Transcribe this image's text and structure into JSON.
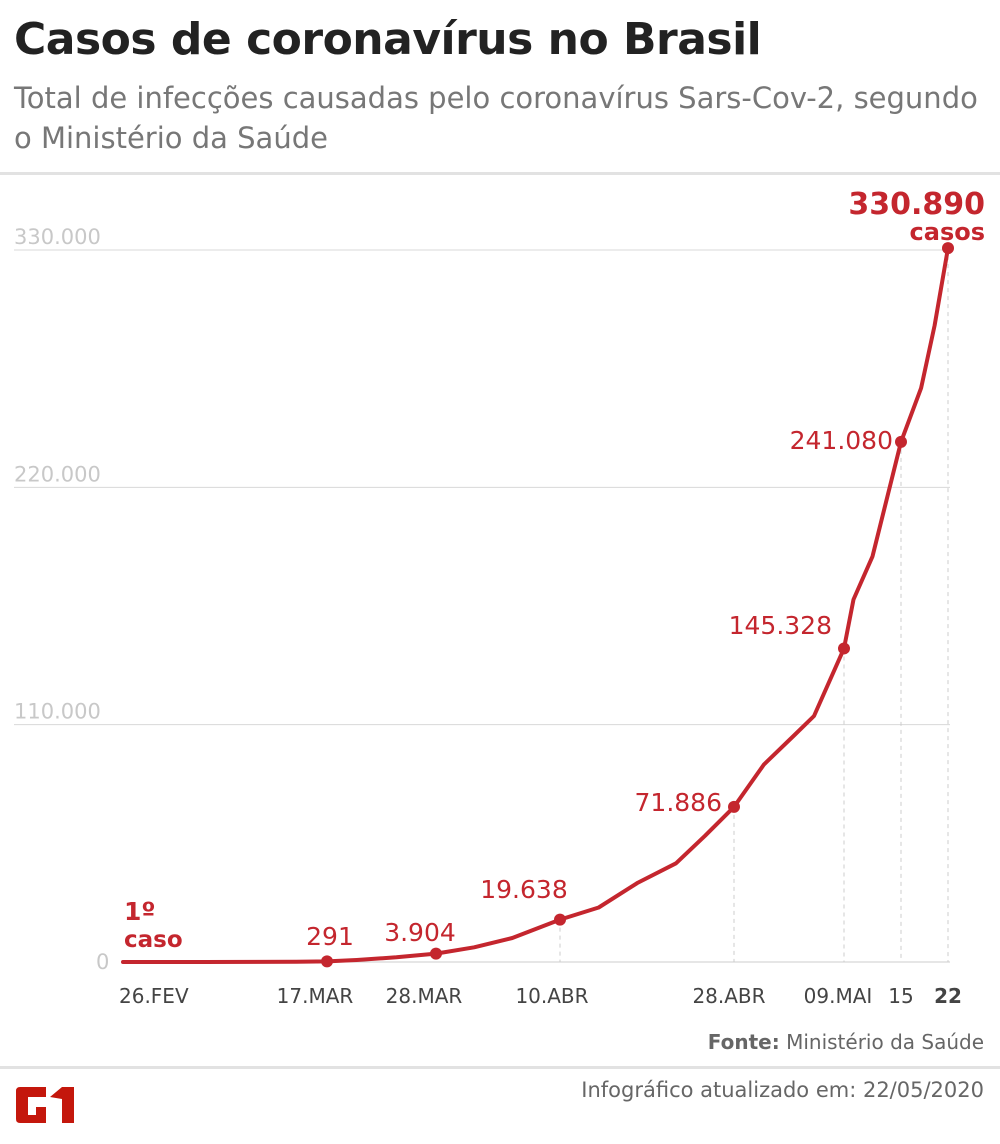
{
  "header": {
    "title": "Casos de coronavírus no Brasil",
    "subtitle": "Total de infecções causadas pelo coronavírus Sars-Cov-2, segundo o Ministério da Saúde"
  },
  "chart_data": {
    "type": "line",
    "title": "Casos de coronavírus no Brasil",
    "subtitle": "Total de infecções causadas pelo coronavírus Sars-Cov-2, segundo o Ministério da Saúde",
    "xlabel": "",
    "ylabel": "",
    "ylim": [
      0,
      330000
    ],
    "grid": true,
    "color": "#c4262e",
    "y_ticks": [
      {
        "value": 0,
        "label": "0"
      },
      {
        "value": 110000,
        "label": "110.000"
      },
      {
        "value": 220000,
        "label": "220.000"
      },
      {
        "value": 330000,
        "label": "330.000"
      }
    ],
    "x_ticks": [
      {
        "date": "2020-02-26",
        "label": "26.FEV"
      },
      {
        "date": "2020-03-17",
        "label": "17.MAR"
      },
      {
        "date": "2020-03-28",
        "label": "28.MAR"
      },
      {
        "date": "2020-04-10",
        "label": "10.ABR"
      },
      {
        "date": "2020-04-28",
        "label": "28.ABR"
      },
      {
        "date": "2020-05-09",
        "label": "09.MAI"
      },
      {
        "date": "2020-05-15",
        "label": "15"
      },
      {
        "date": "2020-05-22",
        "label": "22"
      }
    ],
    "series": [
      {
        "points": [
          [
            "2020-02-26",
            1
          ],
          [
            "2020-03-05",
            8
          ],
          [
            "2020-03-10",
            31
          ],
          [
            "2020-03-14",
            121
          ],
          [
            "2020-03-17",
            291
          ],
          [
            "2020-03-20",
            904
          ],
          [
            "2020-03-24",
            2201
          ],
          [
            "2020-03-28",
            3904
          ],
          [
            "2020-04-01",
            6836
          ],
          [
            "2020-04-05",
            11130
          ],
          [
            "2020-04-10",
            19638
          ],
          [
            "2020-04-14",
            25262
          ],
          [
            "2020-04-18",
            36599
          ],
          [
            "2020-04-22",
            45757
          ],
          [
            "2020-04-25",
            58509
          ],
          [
            "2020-04-28",
            71886
          ],
          [
            "2020-05-01",
            91589
          ],
          [
            "2020-05-04",
            105000
          ],
          [
            "2020-05-06",
            114000
          ],
          [
            "2020-05-09",
            145328
          ],
          [
            "2020-05-10",
            168000
          ],
          [
            "2020-05-12",
            188000
          ],
          [
            "2020-05-15",
            241080
          ],
          [
            "2020-05-18",
            266000
          ],
          [
            "2020-05-20",
            295000
          ],
          [
            "2020-05-22",
            330890
          ]
        ]
      }
    ],
    "annotations": [
      {
        "date": "2020-02-26",
        "value": 1,
        "label": "1º",
        "label2": "caso"
      },
      {
        "date": "2020-03-17",
        "value": 291,
        "label": "291"
      },
      {
        "date": "2020-03-28",
        "value": 3904,
        "label": "3.904"
      },
      {
        "date": "2020-04-10",
        "value": 19638,
        "label": "19.638"
      },
      {
        "date": "2020-04-28",
        "value": 71886,
        "label": "71.886"
      },
      {
        "date": "2020-05-09",
        "value": 145328,
        "label": "145.328"
      },
      {
        "date": "2020-05-15",
        "value": 241080,
        "label": "241.080"
      },
      {
        "date": "2020-05-22",
        "value": 330890,
        "label": "330.890",
        "label2": "casos"
      }
    ]
  },
  "footer": {
    "source_label": "Fonte:",
    "source_text": "Ministério da Saúde",
    "updated": "Infográfico atualizado em: 22/05/2020",
    "logo_text": "G1"
  }
}
